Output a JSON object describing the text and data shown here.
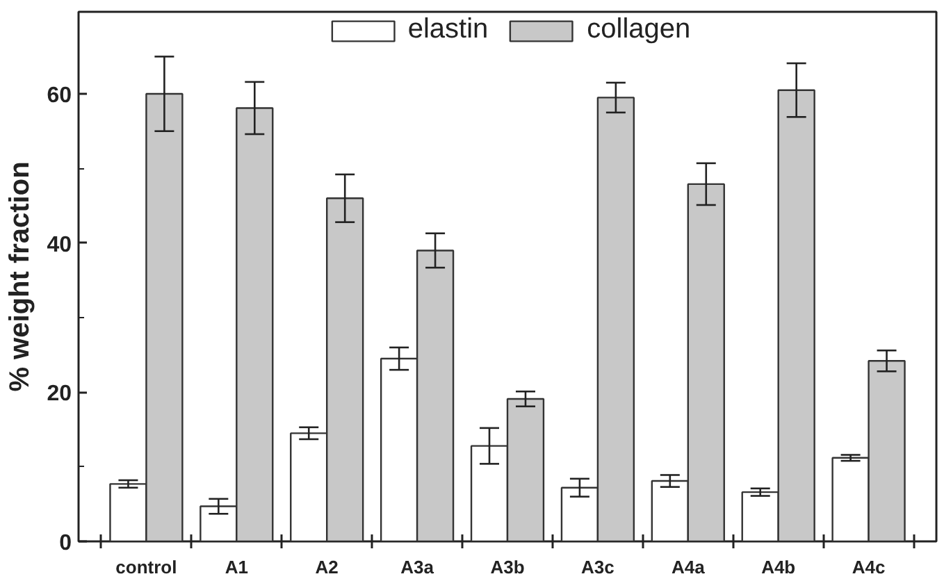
{
  "chart_data": {
    "type": "bar",
    "ylabel": "% weight fraction",
    "categories": [
      "control",
      "A1",
      "A2",
      "A3a",
      "A3b",
      "A3c",
      "A4a",
      "A4b",
      "A4c"
    ],
    "series": [
      {
        "name": "elastin",
        "color": "#ffffff",
        "values": [
          7.7,
          4.7,
          14.5,
          24.5,
          12.8,
          7.2,
          8.1,
          6.6,
          11.2
        ],
        "errors": [
          0.5,
          1,
          0.8,
          1.5,
          2.4,
          1.2,
          0.8,
          0.5,
          0.4
        ]
      },
      {
        "name": "collagen",
        "color": "#c8c8c8",
        "values": [
          60,
          58.1,
          46,
          39,
          19.1,
          59.5,
          47.9,
          60.5,
          24.2
        ],
        "errors": [
          5,
          3.5,
          3.2,
          2.3,
          1,
          2,
          2.8,
          3.6,
          1.4
        ]
      }
    ],
    "ylim": [
      0,
      71
    ],
    "yticks": [
      0,
      {
        "value": 10,
        "label": null
      },
      20,
      {
        "value": 30,
        "label": null
      },
      40,
      {
        "value": 50,
        "label": null
      },
      60
    ],
    "grid": false,
    "legend": "top"
  }
}
